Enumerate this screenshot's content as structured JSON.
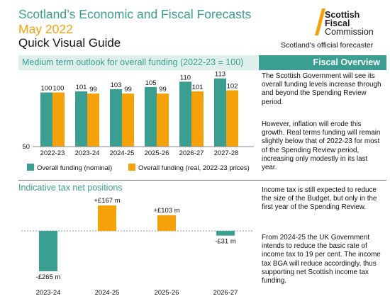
{
  "header": {
    "title_line1": "Scotland’s Economic and Fiscal Forecasts",
    "title_line2": "May 2022",
    "title_line3": "Quick Visual Guide"
  },
  "logo": {
    "line1": "Scottish",
    "line2": "Fiscal",
    "line3": "Commission",
    "tagline": "Scotland's official forecaster"
  },
  "colors": {
    "teal": "#3a9e90",
    "orange": "#f5a20a",
    "band": "#dff0ec"
  },
  "overview": {
    "title": "Fiscal Overview",
    "p1": "The Scottish Government will see its overall funding levels increase through and beyond the Spending Review period.",
    "p2": "However, inflation will erode this growth. Real terms funding will remain slightly below that of 2022-23 for most of the Spending Review period, increasing only modestly in its last year.",
    "p3": "Income tax is still expected to reduce the size of the Budget, but only in the first year of the Spending Review.",
    "p4": "From 2024-25 the UK Government intends to reduce the basic rate of income tax to 19 per cent. The income tax BGA will reduce accordingly, thus supporting net Scottish income tax funding."
  },
  "chart_data": [
    {
      "type": "bar",
      "title": "Medium term outlook for overall funding (2022-23 = 100)",
      "categories": [
        "2022-23",
        "2023-24",
        "2024-25",
        "2025-26",
        "2026-27",
        "2027-28"
      ],
      "series": [
        {
          "name": "Overall funding (nominal)",
          "color": "#3a9e90",
          "values": [
            100,
            101,
            103,
            105,
            110,
            113
          ]
        },
        {
          "name": "Overall funding (real, 2022-23 prices)",
          "color": "#f5a20a",
          "values": [
            100,
            99,
            99,
            99,
            101,
            102
          ]
        }
      ],
      "ylim": [
        50,
        120
      ],
      "ytick_label": "50",
      "legend": "bottom",
      "grid": false
    },
    {
      "type": "bar",
      "title": "Indicative tax net positions",
      "categories": [
        "2023-24",
        "2024-25",
        "2025-26",
        "2026-27"
      ],
      "values": [
        -265,
        167,
        103,
        -31
      ],
      "labels": [
        "-£265 m",
        "+£167 m",
        "+£103 m",
        "-£31 m"
      ],
      "colors": [
        "#3a9e90",
        "#f5a20a",
        "#f5a20a",
        "#3a9e90"
      ],
      "unit": "£ m",
      "ylim": [
        -300,
        220
      ],
      "grid": false
    }
  ]
}
